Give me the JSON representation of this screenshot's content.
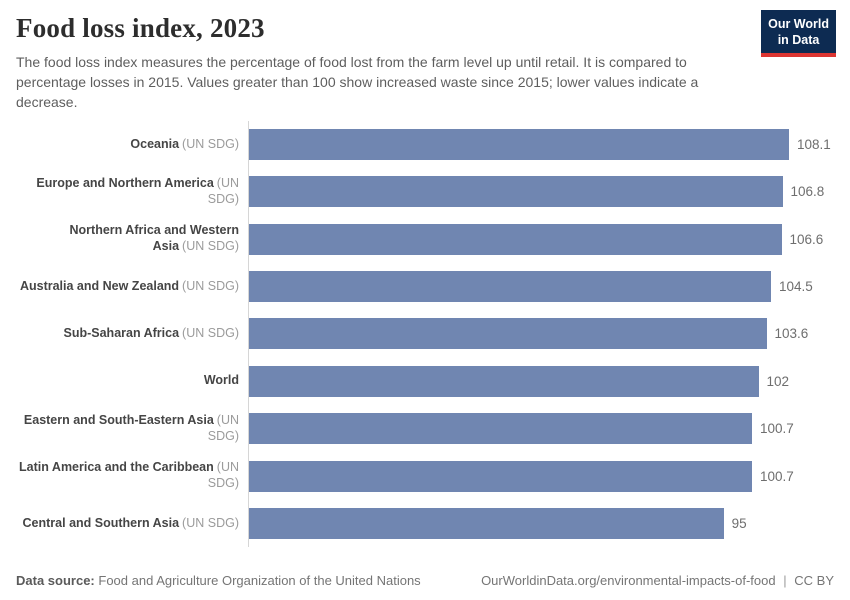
{
  "header": {
    "title": "Food loss index, 2023",
    "subtitle": "The food loss index measures the percentage of food lost from the farm level up until retail. It is compared to percentage losses in 2015. Values greater than 100 show increased waste since 2015; lower values indicate a decrease.",
    "logo": {
      "line1": "Our World",
      "line2": "in Data",
      "bg_color": "#0d2b52",
      "accent_color": "#dc3532"
    }
  },
  "chart_data": {
    "type": "bar",
    "orientation": "horizontal",
    "title": "Food loss index, 2023",
    "xlabel": "",
    "ylabel": "",
    "xlim": [
      0,
      108.1
    ],
    "grid": false,
    "legend": false,
    "bar_color": "#7086b1",
    "axis_color": "#d6d6d6",
    "rows": [
      {
        "name": "Oceania",
        "qualifier": "(UN SDG)",
        "value": 108.1,
        "label": "108.1"
      },
      {
        "name": "Europe and Northern America",
        "qualifier": "(UN SDG)",
        "value": 106.8,
        "label": "106.8"
      },
      {
        "name": "Northern Africa and Western Asia",
        "qualifier": "(UN SDG)",
        "value": 106.6,
        "label": "106.6"
      },
      {
        "name": "Australia and New Zealand",
        "qualifier": "(UN SDG)",
        "value": 104.5,
        "label": "104.5"
      },
      {
        "name": "Sub-Saharan Africa",
        "qualifier": "(UN SDG)",
        "value": 103.6,
        "label": "103.6"
      },
      {
        "name": "World",
        "qualifier": "",
        "value": 102,
        "label": "102"
      },
      {
        "name": "Eastern and South-Eastern Asia",
        "qualifier": "(UN SDG)",
        "value": 100.7,
        "label": "100.7"
      },
      {
        "name": "Latin America and the Caribbean",
        "qualifier": "(UN SDG)",
        "value": 100.7,
        "label": "100.7"
      },
      {
        "name": "Central and Southern Asia",
        "qualifier": "(UN SDG)",
        "value": 95,
        "label": "95"
      }
    ]
  },
  "footer": {
    "datasource_label": "Data source:",
    "datasource_value": "Food and Agriculture Organization of the United Nations",
    "url": "OurWorldinData.org/environmental-impacts-of-food",
    "separator": "|",
    "license": "CC BY"
  }
}
